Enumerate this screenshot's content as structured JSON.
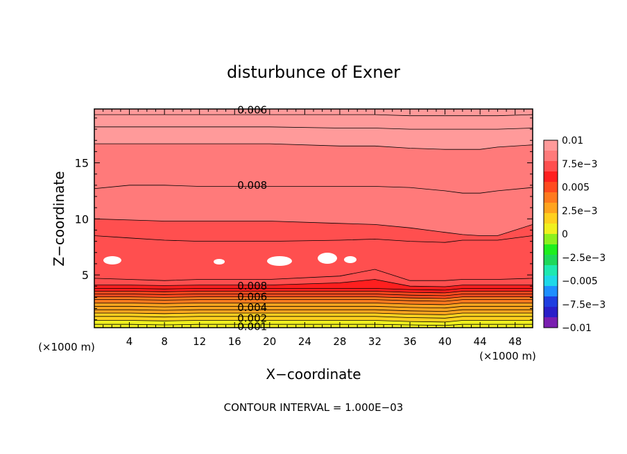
{
  "chart_data": {
    "type": "heatmap",
    "title": "disturbunce of Exner",
    "xlabel": "X−coordinate",
    "ylabel": "Z−coordinate",
    "x_unit": "(×1000 m)",
    "y_unit": "(×1000 m)",
    "footer": "CONTOUR INTERVAL = 1.000E−03",
    "xlim": [
      0,
      50
    ],
    "ylim": [
      0.3,
      19.8
    ],
    "x_ticks": [
      4,
      8,
      12,
      16,
      20,
      24,
      28,
      32,
      36,
      40,
      44,
      48
    ],
    "y_ticks": [
      5,
      10,
      15
    ],
    "colorbar": {
      "levels": [
        -0.01,
        -0.0075,
        -0.005,
        -0.0025,
        0,
        0.0025,
        0.005,
        0.0075,
        0.01
      ],
      "tick_labels": [
        "−0.01",
        "−7.5e−3",
        "−0.005",
        "−2.5e−3",
        "0",
        "2.5e−3",
        "0.005",
        "7.5e−3",
        "0.01"
      ],
      "colors": [
        "#7a1fb0",
        "#2a1fc8",
        "#1f3fe0",
        "#1f8fff",
        "#1fd8e8",
        "#1fe8b0",
        "#1fd85a",
        "#1fee1f",
        "#8cf01f",
        "#f0f01f",
        "#ffd01f",
        "#ffa41f",
        "#ff7a1f",
        "#ff4a1f",
        "#ff1f1f",
        "#ff4f4f",
        "#ff7a7a",
        "#ff9a9a"
      ]
    },
    "contour_labels": [
      {
        "x": 16,
        "z": 19.7,
        "text": "0.006"
      },
      {
        "x": 16,
        "z": 13.0,
        "text": "0.008"
      },
      {
        "x": 16,
        "z": 4.0,
        "text": "0.008"
      },
      {
        "x": 16,
        "z": 3.05,
        "text": "0.006"
      },
      {
        "x": 16,
        "z": 2.1,
        "text": "0.004"
      },
      {
        "x": 16,
        "z": 1.15,
        "text": "0.002"
      },
      {
        "x": 16,
        "z": 0.4,
        "text": "0.001"
      }
    ],
    "band_tops": [
      {
        "value": 0.0005,
        "z": [
          0.6,
          0.6,
          0.55,
          0.6,
          0.6,
          0.6,
          0.6,
          0.6,
          0.55,
          0.5,
          0.6,
          0.6,
          0.6,
          0.6
        ]
      },
      {
        "value": 0.001,
        "z": [
          0.95,
          0.95,
          0.9,
          0.95,
          0.95,
          0.95,
          0.95,
          0.95,
          0.85,
          0.8,
          0.95,
          0.95,
          0.95,
          0.95
        ]
      },
      {
        "value": 0.0015,
        "z": [
          1.3,
          1.3,
          1.25,
          1.3,
          1.3,
          1.3,
          1.3,
          1.3,
          1.2,
          1.15,
          1.3,
          1.3,
          1.3,
          1.3
        ]
      },
      {
        "value": 0.002,
        "z": [
          1.6,
          1.6,
          1.55,
          1.6,
          1.6,
          1.6,
          1.6,
          1.6,
          1.5,
          1.45,
          1.6,
          1.6,
          1.6,
          1.6
        ]
      },
      {
        "value": 0.0025,
        "z": [
          1.9,
          1.9,
          1.85,
          1.9,
          1.9,
          1.9,
          1.9,
          1.9,
          1.8,
          1.75,
          1.9,
          1.9,
          1.9,
          1.9
        ]
      },
      {
        "value": 0.003,
        "z": [
          2.2,
          2.2,
          2.15,
          2.2,
          2.2,
          2.2,
          2.2,
          2.2,
          2.1,
          2.05,
          2.2,
          2.2,
          2.2,
          2.2
        ]
      },
      {
        "value": 0.0035,
        "z": [
          2.5,
          2.5,
          2.45,
          2.5,
          2.5,
          2.5,
          2.5,
          2.5,
          2.4,
          2.35,
          2.5,
          2.5,
          2.5,
          2.5
        ]
      },
      {
        "value": 0.004,
        "z": [
          2.8,
          2.8,
          2.75,
          2.8,
          2.8,
          2.8,
          2.8,
          2.8,
          2.7,
          2.65,
          2.8,
          2.8,
          2.8,
          2.8
        ]
      },
      {
        "value": 0.0045,
        "z": [
          3.05,
          3.05,
          3.0,
          3.05,
          3.05,
          3.05,
          3.05,
          3.05,
          2.95,
          2.9,
          3.05,
          3.05,
          3.05,
          3.05
        ]
      },
      {
        "value": 0.005,
        "z": [
          3.3,
          3.3,
          3.25,
          3.3,
          3.3,
          3.3,
          3.3,
          3.3,
          3.2,
          3.15,
          3.3,
          3.3,
          3.3,
          3.3
        ]
      },
      {
        "value": 0.0055,
        "z": [
          3.55,
          3.55,
          3.5,
          3.55,
          3.55,
          3.55,
          3.55,
          3.55,
          3.45,
          3.4,
          3.55,
          3.55,
          3.55,
          3.55
        ]
      },
      {
        "value": 0.006,
        "z": [
          3.8,
          3.8,
          3.75,
          3.8,
          3.8,
          3.8,
          3.8,
          3.8,
          3.7,
          3.65,
          3.8,
          3.8,
          3.8,
          3.8
        ]
      },
      {
        "value": 0.0065,
        "z": [
          4.1,
          4.1,
          4.05,
          4.1,
          4.1,
          4.1,
          4.3,
          4.6,
          4.0,
          3.95,
          4.1,
          4.1,
          4.1,
          4.1
        ]
      },
      {
        "value": 0.007,
        "z": [
          4.7,
          4.6,
          4.5,
          4.6,
          4.6,
          4.6,
          4.9,
          5.5,
          4.5,
          4.5,
          4.6,
          4.6,
          4.6,
          4.7
        ]
      },
      {
        "value": 0.0075,
        "z": [
          8.5,
          8.3,
          8.1,
          8.0,
          8.0,
          8.0,
          8.1,
          8.2,
          8.0,
          7.9,
          8.1,
          8.1,
          8.1,
          8.5
        ]
      },
      {
        "value": 0.008,
        "z": [
          10.0,
          9.9,
          9.8,
          9.8,
          9.8,
          9.8,
          9.6,
          9.5,
          9.2,
          8.8,
          8.6,
          8.5,
          8.5,
          9.5
        ]
      },
      {
        "value": 0.0085,
        "z": [
          12.7,
          13.0,
          13.0,
          12.9,
          12.9,
          12.9,
          12.9,
          12.9,
          12.8,
          12.5,
          12.3,
          12.3,
          12.5,
          12.8
        ]
      },
      {
        "value": 0.009,
        "z": [
          16.7,
          16.7,
          16.7,
          16.7,
          16.7,
          16.7,
          16.5,
          16.5,
          16.3,
          16.2,
          16.2,
          16.2,
          16.4,
          16.6
        ]
      },
      {
        "value": 0.0095,
        "z": [
          18.2,
          18.2,
          18.2,
          18.2,
          18.2,
          18.2,
          18.1,
          18.1,
          18.0,
          18.0,
          18.0,
          18.0,
          18.0,
          18.1
        ]
      },
      {
        "value": 0.01,
        "z": [
          19.3,
          19.3,
          19.3,
          19.3,
          19.3,
          19.3,
          19.3,
          19.3,
          19.2,
          19.2,
          19.2,
          19.2,
          19.2,
          19.3
        ]
      }
    ],
    "band_x": [
      0,
      4,
      8,
      12,
      16,
      20,
      28,
      32,
      36,
      40,
      42,
      44,
      46,
      50
    ]
  }
}
